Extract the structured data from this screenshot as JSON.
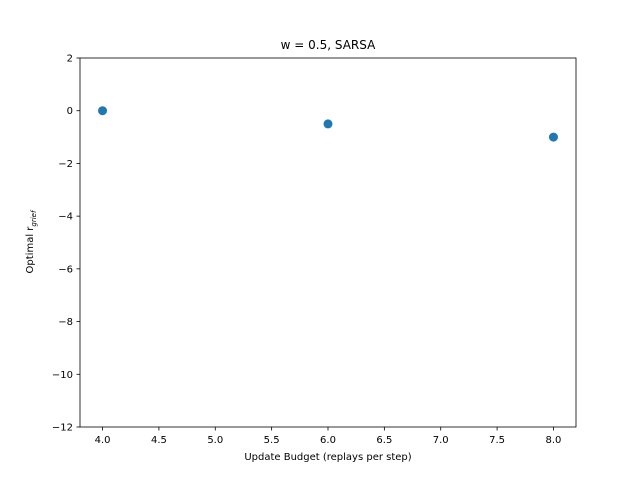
{
  "chart_data": {
    "type": "scatter",
    "title": "w = 0.5, SARSA",
    "xlabel": "Update Budget (replays per step)",
    "ylabel_main": "Optimal r",
    "ylabel_sub": "grief",
    "x": [
      4.0,
      6.0,
      8.0
    ],
    "y": [
      0.0,
      -0.5,
      -1.0
    ],
    "xlim": [
      3.8,
      8.2
    ],
    "ylim": [
      -12,
      2
    ],
    "xticks": [
      4.0,
      4.5,
      5.0,
      5.5,
      6.0,
      6.5,
      7.0,
      7.5,
      8.0
    ],
    "xtick_labels": [
      "4.0",
      "4.5",
      "5.0",
      "5.5",
      "6.0",
      "6.5",
      "7.0",
      "7.5",
      "8.0"
    ],
    "yticks": [
      2,
      0,
      -2,
      -4,
      -6,
      -8,
      -10,
      -12
    ],
    "ytick_labels": [
      "2",
      "0",
      "−2",
      "−4",
      "−6",
      "−8",
      "−10",
      "−12"
    ],
    "grid": false,
    "marker_color": "#1f77b4"
  }
}
